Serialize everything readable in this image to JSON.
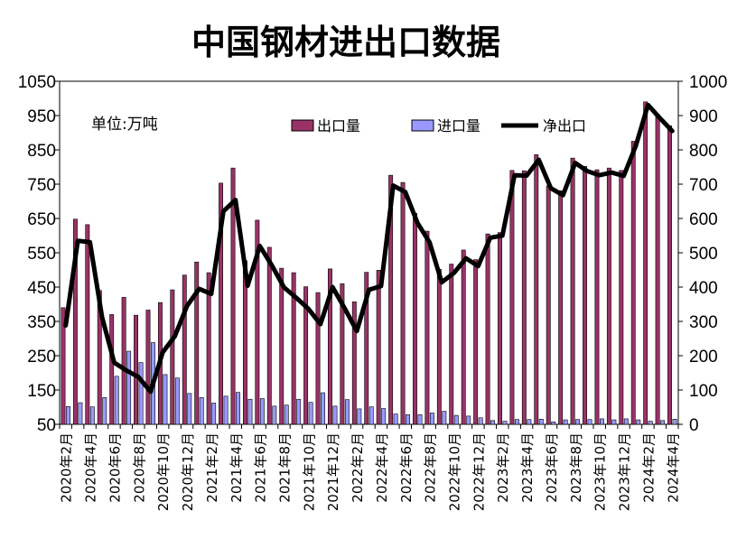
{
  "chart_data": {
    "type": "bar",
    "title": "中国钢材进出口数据",
    "unit_label": "单位:万吨",
    "x": [
      "2020年2月",
      "2020年3月",
      "2020年4月",
      "2020年5月",
      "2020年6月",
      "2020年7月",
      "2020年8月",
      "2020年9月",
      "2020年10月",
      "2020年11月",
      "2020年12月",
      "2021年1月",
      "2021年2月",
      "2021年3月",
      "2021年4月",
      "2021年5月",
      "2021年6月",
      "2021年7月",
      "2021年8月",
      "2021年9月",
      "2021年10月",
      "2021年11月",
      "2021年12月",
      "2022年1月",
      "2022年2月",
      "2022年3月",
      "2022年4月",
      "2022年5月",
      "2022年6月",
      "2022年7月",
      "2022年8月",
      "2022年9月",
      "2022年10月",
      "2022年11月",
      "2022年12月",
      "2023年1月",
      "2023年2月",
      "2023年3月",
      "2023年4月",
      "2023年5月",
      "2023年6月",
      "2023年7月",
      "2023年8月",
      "2023年9月",
      "2023年10月",
      "2023年11月",
      "2023年12月",
      "2024年1月",
      "2024年2月",
      "2024年3月",
      "2024年4月"
    ],
    "x_tick_labels": [
      "2020年2月",
      "2020年4月",
      "2020年6月",
      "2020年8月",
      "2020年10月",
      "2020年12月",
      "2021年2月",
      "2021年4月",
      "2021年6月",
      "2021年8月",
      "2021年10月",
      "2021年12月",
      "2022年2月",
      "2022年4月",
      "2022年6月",
      "2022年8月",
      "2022年10月",
      "2022年12月",
      "2023年2月",
      "2023年4月",
      "2023年6月",
      "2023年8月",
      "2023年10月",
      "2023年12月",
      "2024年2月",
      "2024年4月"
    ],
    "series": [
      {
        "name": "出口量",
        "type": "bar",
        "axis": "left",
        "color": "#993366",
        "values": [
          390,
          648,
          632,
          440,
          370,
          420,
          368,
          383,
          405,
          442,
          485,
          523,
          492,
          753,
          797,
          527,
          645,
          566,
          505,
          492,
          451,
          434,
          503,
          460,
          407,
          493,
          499,
          776,
          755,
          665,
          613,
          502,
          517,
          558,
          530,
          605,
          609,
          790,
          789,
          836,
          745,
          731,
          826,
          802,
          792,
          797,
          790,
          875,
          990,
          953,
          920
        ]
      },
      {
        "name": "进口量",
        "type": "bar",
        "axis": "left",
        "color": "#9999ff",
        "values": [
          102,
          113,
          101,
          128,
          190,
          263,
          230,
          288,
          195,
          185,
          140,
          128,
          112,
          132,
          143,
          123,
          125,
          103,
          106,
          123,
          114,
          142,
          103,
          122,
          95,
          101,
          96,
          80,
          78,
          78,
          83,
          88,
          76,
          74,
          69,
          61,
          59,
          64,
          64,
          65,
          57,
          63,
          64,
          64,
          66,
          63,
          66,
          63,
          59,
          61,
          65
        ]
      },
      {
        "name": "净出口",
        "type": "line",
        "axis": "right",
        "color": "#000000",
        "values": [
          288,
          535,
          531,
          312,
          180,
          157,
          138,
          95,
          210,
          257,
          345,
          395,
          380,
          621,
          654,
          404,
          520,
          463,
          399,
          369,
          337,
          292,
          400,
          338,
          272,
          392,
          403,
          696,
          677,
          587,
          530,
          414,
          441,
          484,
          461,
          544,
          550,
          726,
          725,
          771,
          688,
          668,
          762,
          738,
          726,
          734,
          724,
          812,
          931,
          892,
          855
        ]
      }
    ],
    "y_left": {
      "ylim": [
        50,
        1050
      ],
      "ticks": [
        50,
        150,
        250,
        350,
        450,
        550,
        650,
        750,
        850,
        950,
        1050
      ]
    },
    "y_right": {
      "ylim": [
        0,
        1000
      ],
      "ticks": [
        0,
        100,
        200,
        300,
        400,
        500,
        600,
        700,
        800,
        900,
        1000
      ]
    },
    "legend_position": "top",
    "grid": false
  }
}
